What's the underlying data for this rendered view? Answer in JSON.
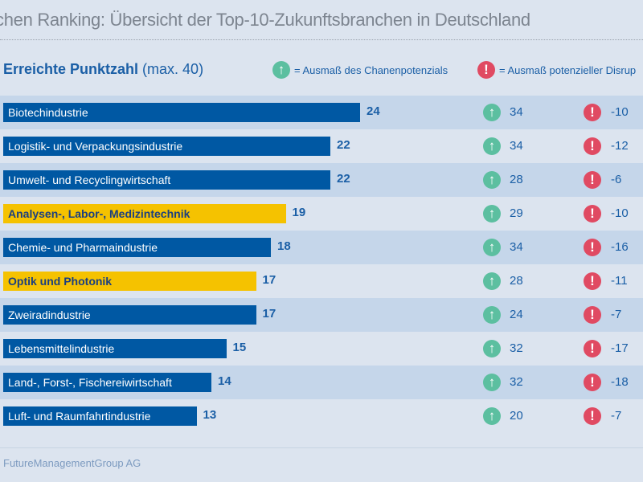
{
  "title": "chen Ranking: Übersicht der Top-10-Zukunftsbranchen in Deutschland",
  "header": {
    "label_bold": "Erreichte Punktzahl",
    "label_rest": " (max. 40)"
  },
  "legend": {
    "potential": "= Ausmaß des Chanenpotenzials",
    "disruption": "= Ausmaß potenzieller Disrup",
    "potential_icon": "arrow-up-icon",
    "disruption_icon": "exclamation-icon"
  },
  "colors": {
    "bar_blue": "#0058a3",
    "bar_yellow": "#f5c200",
    "potential": "#5cbfa0",
    "disruption": "#e04a62",
    "row_dark": "#c5d6ea",
    "row_light": "#dce4ef"
  },
  "chart_data": {
    "type": "bar",
    "orientation": "horizontal",
    "xlim": [
      0,
      40
    ],
    "categories": [
      "Biotechindustrie",
      "Logistik- und Verpackungsindustrie",
      "Umwelt- und Recyclingwirtschaft",
      "Analysen-, Labor-, Medizintechnik",
      "Chemie- und Pharmaindustrie",
      "Optik und Photonik",
      "Zweiradindustrie",
      "Lebensmittelindustrie",
      "Land-, Forst-, Fischereiwirtschaft",
      "Luft- und Raumfahrtindustrie"
    ],
    "values": [
      24,
      22,
      22,
      19,
      18,
      17,
      17,
      15,
      14,
      13
    ],
    "highlighted": [
      false,
      false,
      false,
      true,
      false,
      true,
      false,
      false,
      false,
      false
    ],
    "potential": [
      34,
      34,
      28,
      29,
      34,
      28,
      24,
      32,
      32,
      20
    ],
    "disruption": [
      -10,
      -12,
      -6,
      -10,
      -16,
      -11,
      -7,
      -17,
      -18,
      -7
    ]
  },
  "footer": "FutureManagementGroup AG"
}
